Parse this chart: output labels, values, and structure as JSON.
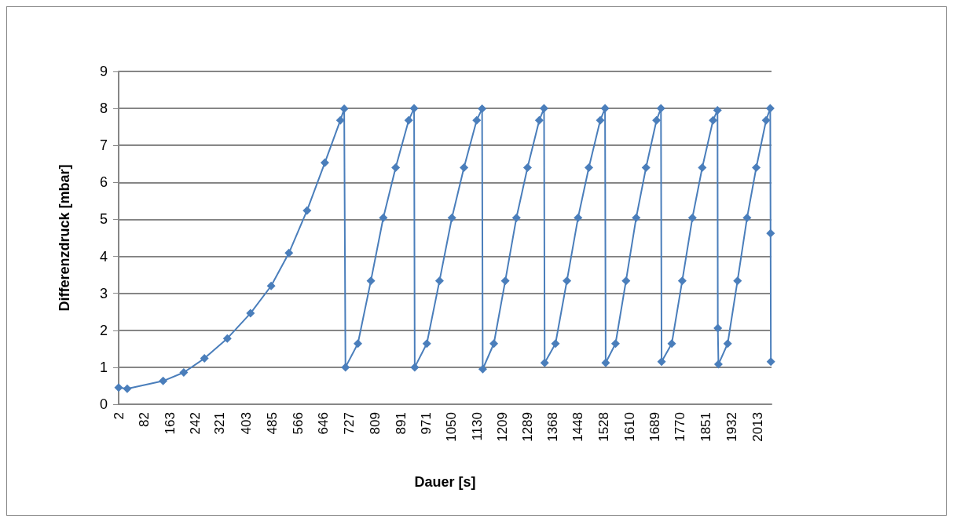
{
  "chart_data": {
    "type": "line",
    "xlabel": "Dauer [s]",
    "ylabel": "Differenzdruck [mbar]",
    "xlim": [
      2,
      2057
    ],
    "xticks": [
      2,
      82,
      163,
      242,
      321,
      403,
      485,
      566,
      646,
      727,
      809,
      891,
      971,
      1050,
      1130,
      1209,
      1289,
      1368,
      1448,
      1528,
      1610,
      1689,
      1770,
      1851,
      1932,
      2013
    ],
    "ylim": [
      0,
      9
    ],
    "yticks": [
      0,
      1,
      2,
      3,
      4,
      5,
      6,
      7,
      8,
      9
    ],
    "grid": "y",
    "marker": "diamond",
    "line_style": "solid",
    "series": [
      {
        "color": "#4a7ebb",
        "x": [
          2,
          29,
          142,
          207,
          272,
          344,
          417,
          482,
          538,
          595,
          651,
          700,
          712,
          716,
          755,
          796,
          835,
          874,
          915,
          932,
          934,
          972,
          1012,
          1051,
          1089,
          1129,
          1146,
          1148,
          1183,
          1219,
          1254,
          1289,
          1326,
          1341,
          1343,
          1377,
          1413,
          1448,
          1482,
          1518,
          1533,
          1535,
          1566,
          1599,
          1631,
          1662,
          1695,
          1709,
          1711,
          1743,
          1776,
          1808,
          1839,
          1873,
          1887,
          1888,
          1890,
          1919,
          1950,
          1980,
          2009,
          2040,
          2053,
          2054,
          2055
        ],
        "values": [
          0.45,
          0.42,
          0.63,
          0.86,
          1.24,
          1.78,
          2.46,
          3.2,
          4.09,
          5.24,
          6.53,
          7.68,
          7.99,
          1.0,
          1.64,
          3.34,
          5.04,
          6.4,
          7.68,
          8.0,
          1.0,
          1.64,
          3.34,
          5.04,
          6.4,
          7.68,
          7.99,
          0.95,
          1.64,
          3.34,
          5.04,
          6.4,
          7.68,
          8.0,
          1.12,
          1.64,
          3.34,
          5.04,
          6.4,
          7.68,
          8.0,
          1.12,
          1.64,
          3.34,
          5.04,
          6.4,
          7.68,
          8.0,
          1.15,
          1.64,
          3.34,
          5.04,
          6.4,
          7.68,
          7.95,
          2.06,
          1.08,
          1.64,
          3.34,
          5.04,
          6.4,
          7.68,
          8.0,
          4.62,
          1.15
        ]
      }
    ]
  }
}
